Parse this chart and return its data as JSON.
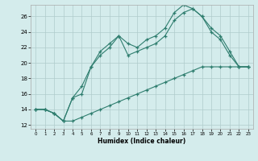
{
  "xlabel": "Humidex (Indice chaleur)",
  "bg_color": "#d4ecec",
  "line_color": "#2e7d6e",
  "grid_color": "#b0cccc",
  "xlim": [
    -0.5,
    23.5
  ],
  "ylim": [
    11.5,
    27.5
  ],
  "xticks": [
    0,
    1,
    2,
    3,
    4,
    5,
    6,
    7,
    8,
    9,
    10,
    11,
    12,
    13,
    14,
    15,
    16,
    17,
    18,
    19,
    20,
    21,
    22,
    23
  ],
  "yticks": [
    12,
    14,
    16,
    18,
    20,
    22,
    24,
    26
  ],
  "line1_x": [
    0,
    1,
    2,
    3,
    4,
    5,
    6,
    7,
    8,
    9,
    10,
    11,
    12,
    13,
    14,
    15,
    16,
    17,
    18,
    19,
    20,
    21,
    22,
    23
  ],
  "line1_y": [
    14,
    14,
    13.5,
    12.5,
    15.5,
    16,
    19.5,
    21,
    22,
    23.5,
    21,
    21.5,
    22,
    22.5,
    23.5,
    25.5,
    26.5,
    27,
    26,
    24,
    23,
    21,
    19.5,
    19.5
  ],
  "line2_x": [
    0,
    1,
    2,
    3,
    4,
    5,
    6,
    7,
    8,
    9,
    10,
    11,
    12,
    13,
    14,
    15,
    16,
    17,
    18,
    19,
    20,
    21,
    22,
    23
  ],
  "line2_y": [
    14,
    14,
    13.5,
    12.5,
    15.5,
    17,
    19.5,
    21.5,
    22.5,
    23.5,
    22.5,
    22,
    23,
    23.5,
    24.5,
    26.5,
    27.5,
    27,
    26,
    24.5,
    23.5,
    21.5,
    19.5,
    19.5
  ],
  "line3_x": [
    0,
    1,
    2,
    3,
    4,
    5,
    6,
    7,
    8,
    9,
    10,
    11,
    12,
    13,
    14,
    15,
    16,
    17,
    18,
    19,
    20,
    21,
    22,
    23
  ],
  "line3_y": [
    14,
    14,
    13.5,
    12.5,
    12.5,
    13,
    13.5,
    14,
    14.5,
    15,
    15.5,
    16,
    16.5,
    17,
    17.5,
    18,
    18.5,
    19,
    19.5,
    19.5,
    19.5,
    19.5,
    19.5,
    19.5
  ]
}
